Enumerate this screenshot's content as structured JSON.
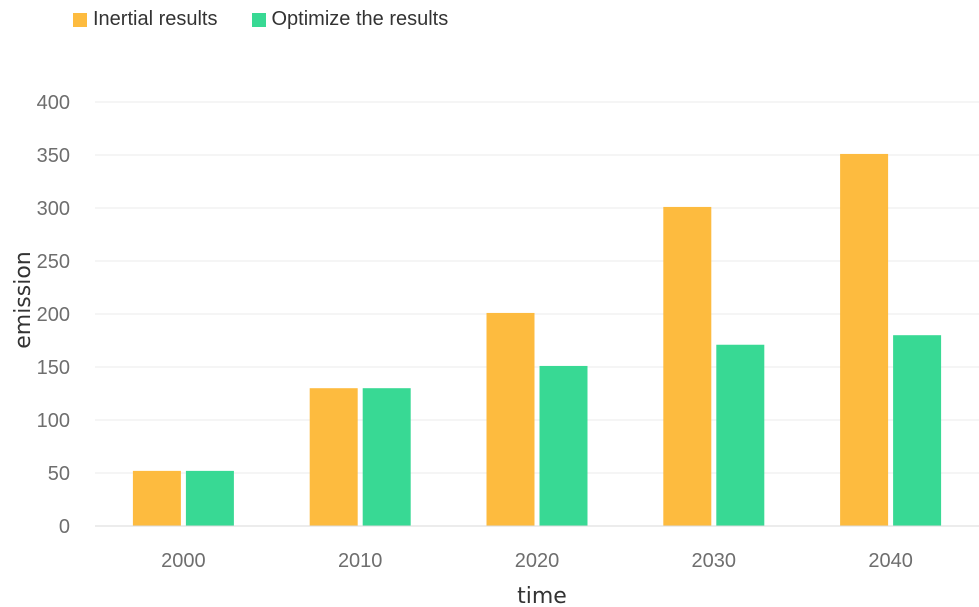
{
  "chart_data": {
    "type": "bar",
    "title": "",
    "xlabel": "time",
    "ylabel": "emission",
    "categories": [
      "2000",
      "2010",
      "2020",
      "2030",
      "2040"
    ],
    "series": [
      {
        "name": "Inertial results",
        "color": "#fdbb3f",
        "values": [
          52,
          130,
          201,
          301,
          351
        ]
      },
      {
        "name": "Optimize the results",
        "color": "#38d994",
        "values": [
          52,
          130,
          151,
          171,
          180
        ]
      }
    ],
    "ylim": [
      0,
      400
    ],
    "yticks": [
      0,
      50,
      100,
      150,
      200,
      250,
      300,
      350,
      400
    ],
    "grid": true,
    "legend_position": "top-left"
  }
}
